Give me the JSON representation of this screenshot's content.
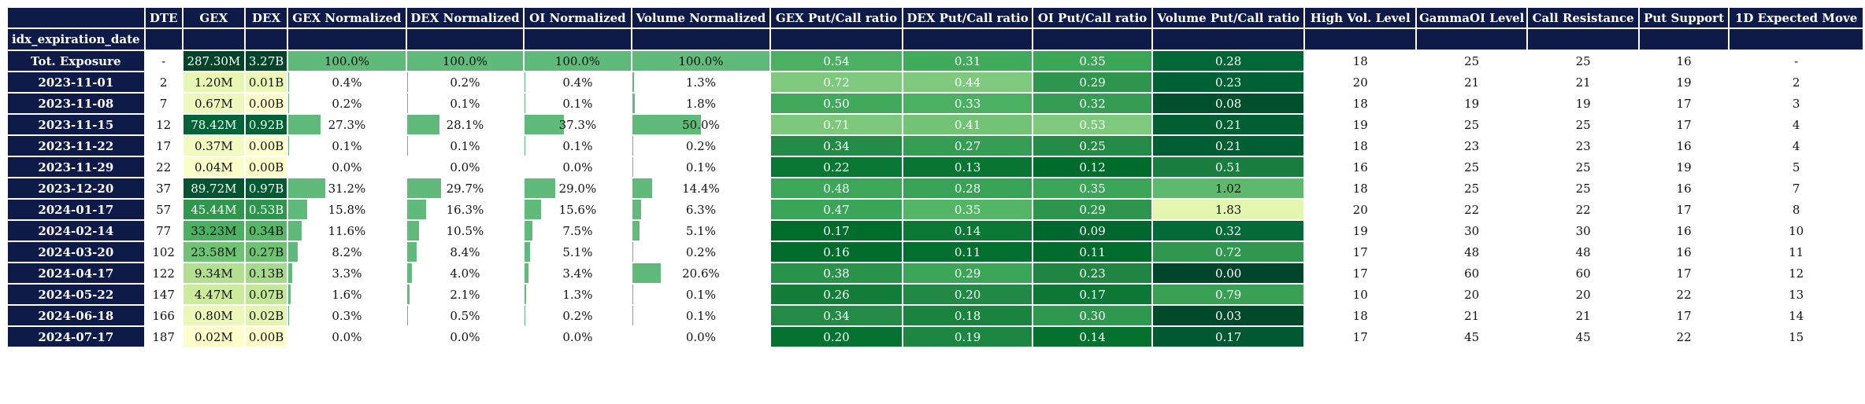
{
  "columns": [
    "DTE",
    "GEX",
    "DEX",
    "GEX Normalized",
    "DEX Normalized",
    "OI Normalized",
    "Volume Normalized",
    "GEX Put/Call ratio",
    "DEX Put/Call ratio",
    "OI Put/Call ratio",
    "Volume Put/Call ratio",
    "High Vol. Level",
    "GammaOI Level",
    "Call Resistance",
    "Put Support",
    "1D Expected Move"
  ],
  "index_name": "idx_expiration_date",
  "rows": [
    {
      "label": "Tot. Exposure",
      "dte": "-",
      "gex": "287.30M",
      "dex": "3.27B",
      "gexn": "100.0%",
      "dexn": "100.0%",
      "oin": "100.0%",
      "voln": "100.0%",
      "gpc": "0.54",
      "dpc": "0.31",
      "opc": "0.35",
      "vpc": "0.28",
      "hvl": "18",
      "goi": "25",
      "cr": "25",
      "ps": "16",
      "em": "-"
    },
    {
      "label": "2023-11-01",
      "dte": "2",
      "gex": "1.20M",
      "dex": "0.01B",
      "gexn": "0.4%",
      "dexn": "0.2%",
      "oin": "0.4%",
      "voln": "1.3%",
      "gpc": "0.72",
      "dpc": "0.44",
      "opc": "0.29",
      "vpc": "0.23",
      "hvl": "20",
      "goi": "21",
      "cr": "21",
      "ps": "19",
      "em": "2"
    },
    {
      "label": "2023-11-08",
      "dte": "7",
      "gex": "0.67M",
      "dex": "0.00B",
      "gexn": "0.2%",
      "dexn": "0.1%",
      "oin": "0.1%",
      "voln": "1.8%",
      "gpc": "0.50",
      "dpc": "0.33",
      "opc": "0.32",
      "vpc": "0.08",
      "hvl": "18",
      "goi": "19",
      "cr": "19",
      "ps": "17",
      "em": "3"
    },
    {
      "label": "2023-11-15",
      "dte": "12",
      "gex": "78.42M",
      "dex": "0.92B",
      "gexn": "27.3%",
      "dexn": "28.1%",
      "oin": "37.3%",
      "voln": "50.0%",
      "gpc": "0.71",
      "dpc": "0.41",
      "opc": "0.53",
      "vpc": "0.21",
      "hvl": "19",
      "goi": "25",
      "cr": "25",
      "ps": "17",
      "em": "4"
    },
    {
      "label": "2023-11-22",
      "dte": "17",
      "gex": "0.37M",
      "dex": "0.00B",
      "gexn": "0.1%",
      "dexn": "0.1%",
      "oin": "0.1%",
      "voln": "0.2%",
      "gpc": "0.34",
      "dpc": "0.27",
      "opc": "0.25",
      "vpc": "0.21",
      "hvl": "18",
      "goi": "23",
      "cr": "23",
      "ps": "16",
      "em": "4"
    },
    {
      "label": "2023-11-29",
      "dte": "22",
      "gex": "0.04M",
      "dex": "0.00B",
      "gexn": "0.0%",
      "dexn": "0.0%",
      "oin": "0.0%",
      "voln": "0.1%",
      "gpc": "0.22",
      "dpc": "0.13",
      "opc": "0.12",
      "vpc": "0.51",
      "hvl": "16",
      "goi": "25",
      "cr": "25",
      "ps": "19",
      "em": "5"
    },
    {
      "label": "2023-12-20",
      "dte": "37",
      "gex": "89.72M",
      "dex": "0.97B",
      "gexn": "31.2%",
      "dexn": "29.7%",
      "oin": "29.0%",
      "voln": "14.4%",
      "gpc": "0.48",
      "dpc": "0.28",
      "opc": "0.35",
      "vpc": "1.02",
      "hvl": "18",
      "goi": "25",
      "cr": "25",
      "ps": "16",
      "em": "7"
    },
    {
      "label": "2024-01-17",
      "dte": "57",
      "gex": "45.44M",
      "dex": "0.53B",
      "gexn": "15.8%",
      "dexn": "16.3%",
      "oin": "15.6%",
      "voln": "6.3%",
      "gpc": "0.47",
      "dpc": "0.35",
      "opc": "0.29",
      "vpc": "1.83",
      "hvl": "20",
      "goi": "22",
      "cr": "22",
      "ps": "17",
      "em": "8"
    },
    {
      "label": "2024-02-14",
      "dte": "77",
      "gex": "33.23M",
      "dex": "0.34B",
      "gexn": "11.6%",
      "dexn": "10.5%",
      "oin": "7.5%",
      "voln": "5.1%",
      "gpc": "0.17",
      "dpc": "0.14",
      "opc": "0.09",
      "vpc": "0.32",
      "hvl": "19",
      "goi": "30",
      "cr": "30",
      "ps": "16",
      "em": "10"
    },
    {
      "label": "2024-03-20",
      "dte": "102",
      "gex": "23.58M",
      "dex": "0.27B",
      "gexn": "8.2%",
      "dexn": "8.4%",
      "oin": "5.1%",
      "voln": "0.2%",
      "gpc": "0.16",
      "dpc": "0.11",
      "opc": "0.11",
      "vpc": "0.72",
      "hvl": "17",
      "goi": "48",
      "cr": "48",
      "ps": "16",
      "em": "11"
    },
    {
      "label": "2024-04-17",
      "dte": "122",
      "gex": "9.34M",
      "dex": "0.13B",
      "gexn": "3.3%",
      "dexn": "4.0%",
      "oin": "3.4%",
      "voln": "20.6%",
      "gpc": "0.38",
      "dpc": "0.29",
      "opc": "0.23",
      "vpc": "0.00",
      "hvl": "17",
      "goi": "60",
      "cr": "60",
      "ps": "17",
      "em": "12"
    },
    {
      "label": "2024-05-22",
      "dte": "147",
      "gex": "4.47M",
      "dex": "0.07B",
      "gexn": "1.6%",
      "dexn": "2.1%",
      "oin": "1.3%",
      "voln": "0.1%",
      "gpc": "0.26",
      "dpc": "0.20",
      "opc": "0.17",
      "vpc": "0.79",
      "hvl": "10",
      "goi": "20",
      "cr": "20",
      "ps": "22",
      "em": "13"
    },
    {
      "label": "2024-06-18",
      "dte": "166",
      "gex": "0.80M",
      "dex": "0.02B",
      "gexn": "0.3%",
      "dexn": "0.5%",
      "oin": "0.2%",
      "voln": "0.1%",
      "gpc": "0.34",
      "dpc": "0.18",
      "opc": "0.30",
      "vpc": "0.03",
      "hvl": "18",
      "goi": "21",
      "cr": "21",
      "ps": "17",
      "em": "14"
    },
    {
      "label": "2024-07-17",
      "dte": "187",
      "gex": "0.02M",
      "dex": "0.00B",
      "gexn": "0.0%",
      "dexn": "0.0%",
      "oin": "0.0%",
      "voln": "0.0%",
      "gpc": "0.20",
      "dpc": "0.19",
      "opc": "0.14",
      "vpc": "0.17",
      "hvl": "17",
      "goi": "45",
      "cr": "45",
      "ps": "22",
      "em": "15"
    }
  ],
  "colors": {
    "header_bg": "#0e1a47",
    "bar_fill": "#60bb7b",
    "yellow_low": "#ffffcc",
    "green_mid": "#78c679",
    "green_high": "#005a32"
  }
}
